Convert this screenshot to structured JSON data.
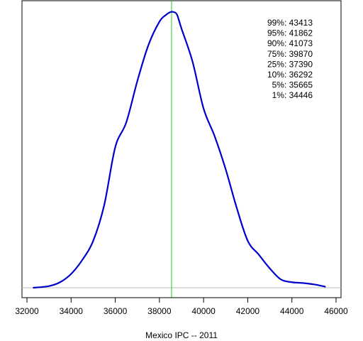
{
  "chart_data": {
    "type": "line",
    "title": "",
    "xlabel": "Mexico IPC -- 2011",
    "ylabel": "",
    "xlim": [
      31800,
      46000
    ],
    "x_ticks": [
      32000,
      34000,
      36000,
      38000,
      40000,
      42000,
      44000,
      46000
    ],
    "x_tick_labels": [
      "32000",
      "34000",
      "36000",
      "38000",
      "40000",
      "42000",
      "44000",
      "46000"
    ],
    "grid": false,
    "series": [
      {
        "color": "#0000cc",
        "x": [
          32300,
          33000,
          33500,
          34000,
          34500,
          35000,
          35500,
          36000,
          36500,
          37000,
          37500,
          38000,
          38300,
          38500,
          38650,
          38800,
          39000,
          39500,
          40000,
          40500,
          41000,
          41500,
          42000,
          42500,
          43000,
          43500,
          44000,
          44500,
          45000,
          45500
        ],
        "y": [
          0.0,
          0.006,
          0.02,
          0.05,
          0.1,
          0.17,
          0.3,
          0.51,
          0.6,
          0.75,
          0.88,
          0.965,
          0.99,
          1.0,
          1.0,
          0.99,
          0.94,
          0.82,
          0.65,
          0.55,
          0.43,
          0.29,
          0.17,
          0.12,
          0.07,
          0.03,
          0.02,
          0.017,
          0.012,
          0.004
        ]
      }
    ],
    "reference_line": {
      "x": 38550,
      "color": "#22cc22"
    },
    "baseline_color": "#bbbbbb",
    "quantiles": [
      {
        "label": "99%:",
        "value": "43413"
      },
      {
        "label": "95%:",
        "value": "41862"
      },
      {
        "label": "90%:",
        "value": "41073"
      },
      {
        "label": "75%:",
        "value": "39870"
      },
      {
        "label": "25%:",
        "value": "37390"
      },
      {
        "label": "10%:",
        "value": "36292"
      },
      {
        "label": "5%:",
        "value": "35665"
      },
      {
        "label": "1%:",
        "value": "34446"
      }
    ]
  }
}
